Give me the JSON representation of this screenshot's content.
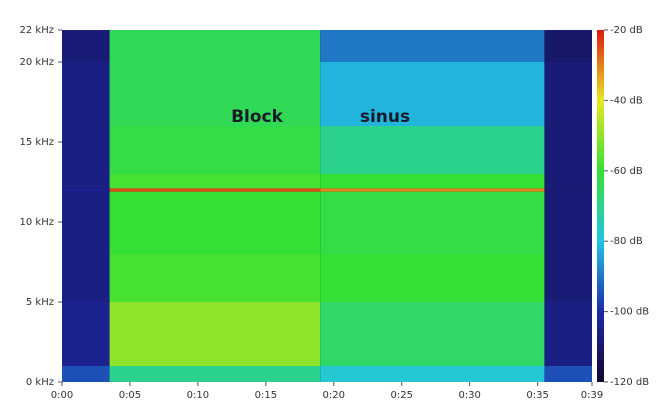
{
  "chart_data": {
    "type": "spectrogram",
    "xlim": [
      0,
      39
    ],
    "xticks": [
      {
        "value": 0,
        "label": "0:00"
      },
      {
        "value": 5,
        "label": "0:05"
      },
      {
        "value": 10,
        "label": "0:10"
      },
      {
        "value": 15,
        "label": "0:15"
      },
      {
        "value": 20,
        "label": "0:20"
      },
      {
        "value": 25,
        "label": "0:25"
      },
      {
        "value": 30,
        "label": "0:30"
      },
      {
        "value": 35,
        "label": "0:35"
      },
      {
        "value": 39,
        "label": "0:39"
      }
    ],
    "ylim": [
      0,
      22
    ],
    "yticks": [
      {
        "value": 0,
        "label": "0 kHz"
      },
      {
        "value": 5,
        "label": "5 kHz"
      },
      {
        "value": 10,
        "label": "10 kHz"
      },
      {
        "value": 15,
        "label": "15 kHz"
      },
      {
        "value": 20,
        "label": "20 kHz"
      },
      {
        "value": 22,
        "label": "22 kHz"
      }
    ],
    "clim": [
      -120,
      -20
    ],
    "cticks": [
      {
        "value": -20,
        "label": "-20 dB"
      },
      {
        "value": -40,
        "label": "-40 dB"
      },
      {
        "value": -60,
        "label": "-60 dB"
      },
      {
        "value": -80,
        "label": "-80 dB"
      },
      {
        "value": -100,
        "label": "-100 dB"
      },
      {
        "value": -120,
        "label": "-120 dB"
      }
    ],
    "colormap": [
      "#14062e",
      "#1c2aa8",
      "#22c4e4",
      "#34e034",
      "#e8e820",
      "#e01810"
    ],
    "annotations": [
      "Block",
      "sinus"
    ],
    "time_edges": [
      0,
      3.5,
      19.0,
      35.5,
      39
    ],
    "freq_edges": [
      0,
      1,
      5,
      8,
      11.9,
      12.1,
      13,
      16,
      20,
      22
    ],
    "z": [
      [
        -95,
        -104,
        -106,
        -106,
        -104,
        -106,
        -106,
        -106,
        -108
      ],
      [
        -70,
        -50,
        -58,
        -60,
        -25,
        -58,
        -62,
        -64,
        -64
      ],
      [
        -78,
        -66,
        -60,
        -62,
        -30,
        -60,
        -70,
        -82,
        -90
      ],
      [
        -95,
        -106,
        -108,
        -108,
        -108,
        -108,
        -108,
        -108,
        -110
      ]
    ]
  }
}
